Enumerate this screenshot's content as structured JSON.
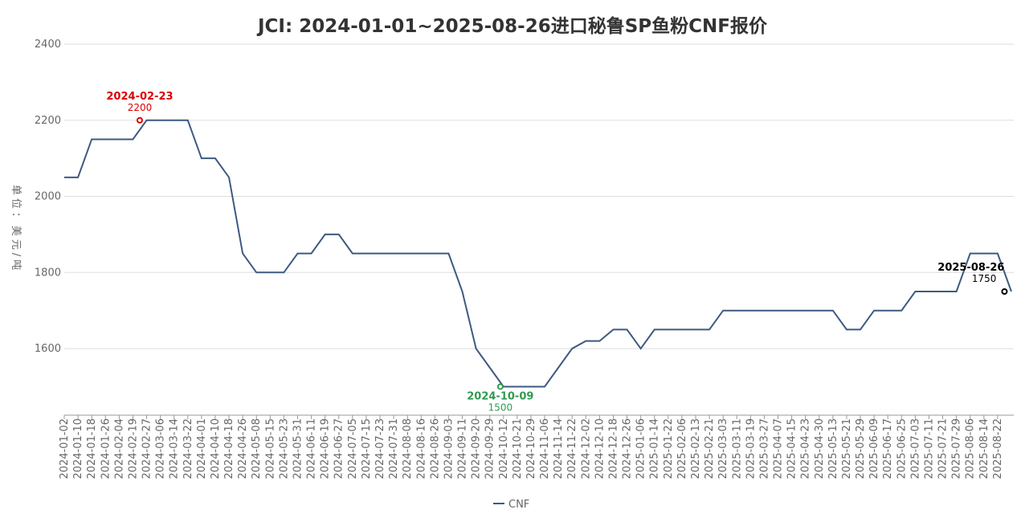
{
  "chart_data": {
    "type": "line",
    "title": "JCI: 2024-01-01~2025-08-26进口秘鲁SP鱼粉CNF报价",
    "y_label": "单位：美元/吨",
    "categories": [
      "2024-01-02",
      "2024-01-10",
      "2024-01-18",
      "2024-01-26",
      "2024-02-04",
      "2024-02-19",
      "2024-02-27",
      "2024-03-06",
      "2024-03-14",
      "2024-03-22",
      "2024-04-01",
      "2024-04-10",
      "2024-04-18",
      "2024-04-26",
      "2024-05-08",
      "2024-05-15",
      "2024-05-23",
      "2024-05-31",
      "2024-06-11",
      "2024-06-19",
      "2024-06-27",
      "2024-07-05",
      "2024-07-15",
      "2024-07-23",
      "2024-07-31",
      "2024-08-08",
      "2024-08-16",
      "2024-08-26",
      "2024-09-03",
      "2024-09-11",
      "2024-09-20",
      "2024-09-29",
      "2024-10-12",
      "2024-10-21",
      "2024-10-29",
      "2024-11-06",
      "2024-11-14",
      "2024-11-22",
      "2024-12-02",
      "2024-12-10",
      "2024-12-18",
      "2024-12-26",
      "2025-01-06",
      "2025-01-14",
      "2025-01-22",
      "2025-02-06",
      "2025-02-13",
      "2025-02-21",
      "2025-03-03",
      "2025-03-11",
      "2025-03-19",
      "2025-03-27",
      "2025-04-07",
      "2025-04-15",
      "2025-04-23",
      "2025-04-30",
      "2025-05-13",
      "2025-05-21",
      "2025-05-29",
      "2025-06-09",
      "2025-06-17",
      "2025-06-25",
      "2025-07-03",
      "2025-07-11",
      "2025-07-21",
      "2025-07-29",
      "2025-08-06",
      "2025-08-14",
      "2025-08-22",
      null
    ],
    "series": [
      {
        "name": "CNF",
        "color": "#3d5a80",
        "values": [
          2050,
          2050,
          2150,
          2150,
          2150,
          2150,
          2200,
          2200,
          2200,
          2200,
          2100,
          2100,
          2050,
          1850,
          1800,
          1800,
          1800,
          1850,
          1850,
          1900,
          1900,
          1850,
          1850,
          1850,
          1850,
          1850,
          1850,
          1850,
          1850,
          1750,
          1600,
          1550,
          1500,
          1500,
          1500,
          1500,
          1550,
          1600,
          1620,
          1620,
          1650,
          1650,
          1600,
          1650,
          1650,
          1650,
          1650,
          1650,
          1700,
          1700,
          1700,
          1700,
          1700,
          1700,
          1700,
          1700,
          1700,
          1650,
          1650,
          1700,
          1700,
          1700,
          1750,
          1750,
          1750,
          1750,
          1850,
          1850,
          1850,
          1750
        ]
      }
    ],
    "annotations": [
      {
        "date": "2024-02-23",
        "value": 2200,
        "color": "#dd0000"
      },
      {
        "date": "2024-10-09",
        "value": 1500,
        "color": "#2e9b4f"
      },
      {
        "date": "2025-08-26",
        "value": 1750,
        "color": "#000000"
      }
    ],
    "ylim": [
      1425,
      2400
    ],
    "yticks": [
      1600,
      1800,
      2000,
      2200,
      2400
    ],
    "grid": true
  }
}
